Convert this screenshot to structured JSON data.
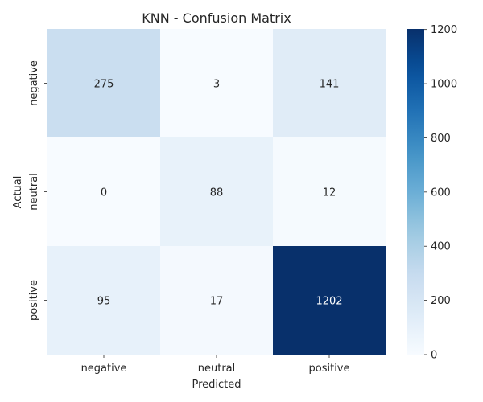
{
  "chart_data": {
    "type": "heatmap",
    "title": "KNN - Confusion Matrix",
    "xlabel": "Predicted",
    "ylabel": "Actual",
    "x_categories": [
      "negative",
      "neutral",
      "positive"
    ],
    "y_categories": [
      "negative",
      "neutral",
      "positive"
    ],
    "values": [
      [
        275,
        3,
        141
      ],
      [
        0,
        88,
        12
      ],
      [
        95,
        17,
        1202
      ]
    ],
    "colormap": "Blues",
    "color_range": [
      0,
      1202
    ],
    "colorbar_ticks": [
      0,
      200,
      400,
      600,
      800,
      1000,
      1200
    ],
    "colorbar_tick_labels": [
      "0",
      "200",
      "400",
      "600",
      "800",
      "1000",
      "1200"
    ]
  }
}
